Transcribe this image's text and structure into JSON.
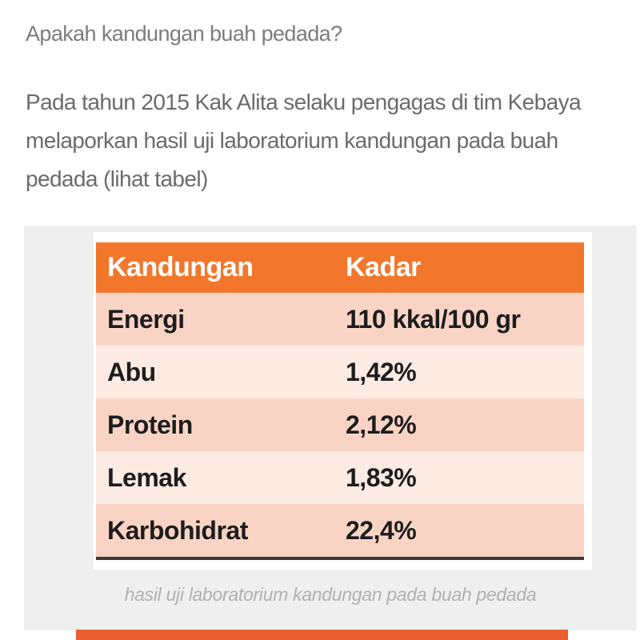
{
  "question_heading": "Apakah kandungan buah pedada?",
  "intro": {
    "lines": [
      "Pada tahun 2015 Kak Alita selaku pengagas di tim Kebaya",
      "melaporkan hasil uji laboratorium kandungan pada buah",
      "pedada (lihat tabel)"
    ]
  },
  "figure": {
    "caption": "hasil uji laboratorium kandungan pada buah pedada"
  },
  "chart_data": {
    "type": "table",
    "columns": [
      "Kandungan",
      "Kadar"
    ],
    "rows": [
      [
        "Energi",
        "110 kkal/100 gr"
      ],
      [
        "Abu",
        "1,42%"
      ],
      [
        "Protein",
        "2,12%"
      ],
      [
        "Lemak",
        "1,83%"
      ],
      [
        "Karbohidrat",
        "22,4%"
      ]
    ],
    "title": "hasil uji laboratorium kandungan pada buah pedada"
  },
  "colors": {
    "accent_orange": "#f2772c",
    "row_dark": "#f9d4c5",
    "row_light": "#fcebe3",
    "panel_gray": "#efefef",
    "bar_orange": "#eb5e2f",
    "heading_gray": "#7c7c7c",
    "body_gray": "#6b6b6b",
    "caption_gray": "#b1b1b1",
    "table_text": "#1d1d1d",
    "border_dark": "#3d3a39"
  }
}
